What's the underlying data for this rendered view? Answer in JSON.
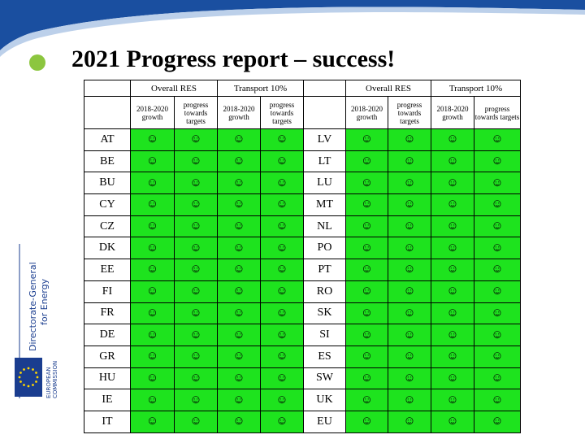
{
  "title": "2021 Progress report – success!",
  "sidebar": {
    "dg": "Directorate-General",
    "dg_sub": "for Energy",
    "commission": "EUROPEAN",
    "commission_sub": "COMMISSION"
  },
  "table": {
    "header_groups": [
      "Overall RES",
      "Transport 10%",
      "Overall RES",
      "Transport 10%"
    ],
    "subheaders": [
      "2018-2020 growth",
      "progress towards targets",
      "2018-2020 growth",
      "progress towards targets",
      "2018-2020 growth",
      "progress towards targets",
      "2018-2020 growth",
      "progress towards targets"
    ],
    "rows": [
      [
        "AT",
        "☺",
        "☺",
        "☺",
        "☺",
        "LV",
        "☺",
        "☺",
        "☺",
        "☺"
      ],
      [
        "BE",
        "☺",
        "☺",
        "☺",
        "☺",
        "LT",
        "☺",
        "☺",
        "☺",
        "☺"
      ],
      [
        "BU",
        "☺",
        "☺",
        "☺",
        "☺",
        "LU",
        "☺",
        "☺",
        "☺",
        "☺"
      ],
      [
        "CY",
        "☺",
        "☺",
        "☺",
        "☺",
        "MT",
        "☺",
        "☺",
        "☺",
        "☺"
      ],
      [
        "CZ",
        "☺",
        "☺",
        "☺",
        "☺",
        "NL",
        "☺",
        "☺",
        "☺",
        "☺"
      ],
      [
        "DK",
        "☺",
        "☺",
        "☺",
        "☺",
        "PO",
        "☺",
        "☺",
        "☺",
        "☺"
      ],
      [
        "EE",
        "☺",
        "☺",
        "☺",
        "☺",
        "PT",
        "☺",
        "☺",
        "☺",
        "☺"
      ],
      [
        "FI",
        "☺",
        "☺",
        "☺",
        "☺",
        "RO",
        "☺",
        "☺",
        "☺",
        "☺"
      ],
      [
        "FR",
        "☺",
        "☺",
        "☺",
        "☺",
        "SK",
        "☺",
        "☺",
        "☺",
        "☺"
      ],
      [
        "DE",
        "☺",
        "☺",
        "☺",
        "☺",
        "SI",
        "☺",
        "☺",
        "☺",
        "☺"
      ],
      [
        "GR",
        "☺",
        "☺",
        "☺",
        "☺",
        "ES",
        "☺",
        "☺",
        "☺",
        "☺"
      ],
      [
        "HU",
        "☺",
        "☺",
        "☺",
        "☺",
        "SW",
        "☺",
        "☺",
        "☺",
        "☺"
      ],
      [
        "IE",
        "☺",
        "☺",
        "☺",
        "☺",
        "UK",
        "☺",
        "☺",
        "☺",
        "☺"
      ],
      [
        "IT",
        "☺",
        "☺",
        "☺",
        "☺",
        "EU",
        "☺",
        "☺",
        "☺",
        "☺"
      ]
    ]
  }
}
